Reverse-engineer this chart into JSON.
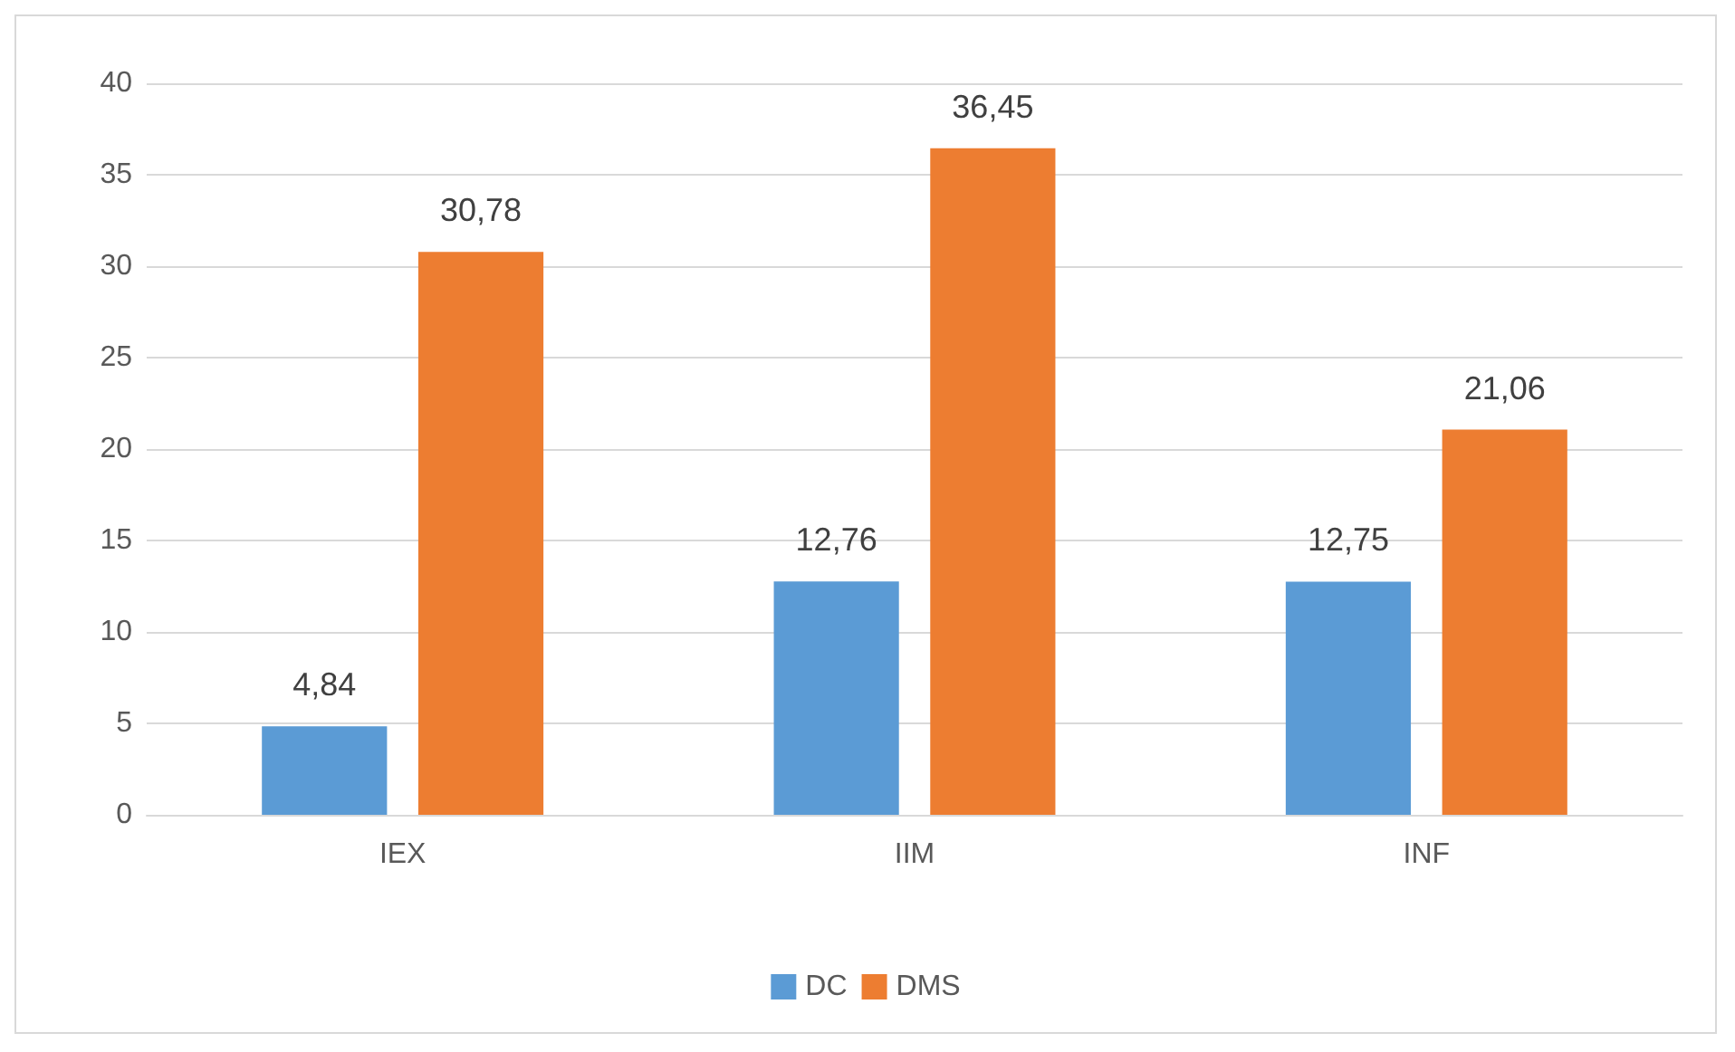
{
  "chart_data": {
    "type": "bar",
    "categories": [
      "IEX",
      "IIM",
      "INF"
    ],
    "series": [
      {
        "name": "DC",
        "color": "#5b9bd5",
        "values": [
          4.84,
          12.76,
          12.75
        ],
        "value_labels": [
          "4,84",
          "12,76",
          "12,75"
        ]
      },
      {
        "name": "DMS",
        "color": "#ed7d31",
        "values": [
          30.78,
          36.45,
          21.06
        ],
        "value_labels": [
          "30,78",
          "36,45",
          "21,06"
        ]
      }
    ],
    "ylim": [
      0,
      40
    ],
    "yticks": [
      0,
      5,
      10,
      15,
      20,
      25,
      30,
      35,
      40
    ],
    "grid": "y",
    "legend": "bottom"
  }
}
